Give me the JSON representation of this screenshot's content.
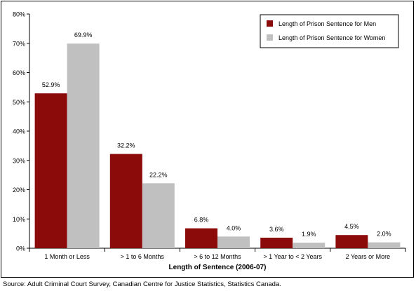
{
  "chart_data": {
    "type": "bar",
    "title": "",
    "xlabel": "Length of Sentence (2006-07)",
    "ylabel": "",
    "ylim": [
      0,
      80
    ],
    "yticks": [
      "0%",
      "10%",
      "20%",
      "30%",
      "40%",
      "50%",
      "60%",
      "70%",
      "80%"
    ],
    "grid": false,
    "legend_position": "top-right",
    "categories": [
      "1 Month or Less",
      "> 1 to 6 Months",
      "> 6 to 12 Months",
      "> 1 Year to < 2 Years",
      "2 Years or More"
    ],
    "series": [
      {
        "name": "Length of Prison Sentence for Men",
        "color": "#8B0A0A",
        "values": [
          52.9,
          32.2,
          6.8,
          3.6,
          4.5
        ],
        "labels": [
          "52.9%",
          "32.2%",
          "6.8%",
          "3.6%",
          "4.5%"
        ]
      },
      {
        "name": "Length of Prison Sentence for Women",
        "color": "#C0C0C0",
        "values": [
          69.9,
          22.2,
          4.0,
          1.9,
          2.0
        ],
        "labels": [
          "69.9%",
          "22.2%",
          "4.0%",
          "1.9%",
          "2.0%"
        ]
      }
    ]
  },
  "source": "Source:  Adult Criminal Court Survey, Canadian Centre for Justice Statistics, Statistics Canada."
}
